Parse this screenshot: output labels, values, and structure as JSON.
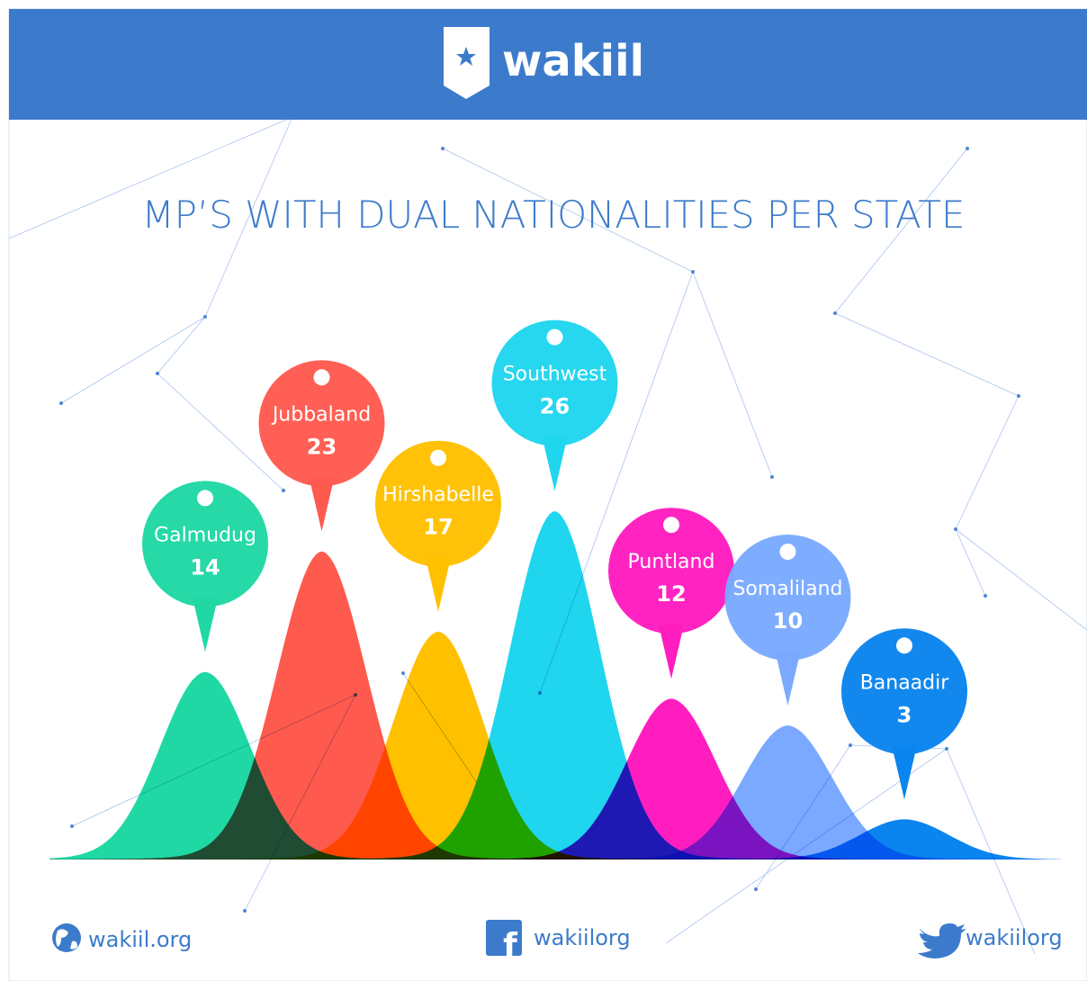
{
  "header": {
    "logo": "wakiil"
  },
  "chart_data": {
    "type": "peak",
    "title": "MP’S WITH DUAL NATIONALITIES PER STATE",
    "categories": [
      "Galmudug",
      "Jubbaland",
      "Hirshabelle",
      "Southwest",
      "Puntland",
      "Somaliland",
      "Banaadir"
    ],
    "values": [
      14,
      23,
      17,
      26,
      12,
      10,
      3
    ],
    "colors": [
      "#1fd8a4",
      "#ff5a4e",
      "#ffc000",
      "#1fd6ee",
      "#ff1dc0",
      "#7aa9ff",
      "#0a84ee"
    ]
  },
  "footer": {
    "website": "wakiil.org",
    "facebook": "wakiilorg",
    "twitter": "wakiilorg"
  }
}
